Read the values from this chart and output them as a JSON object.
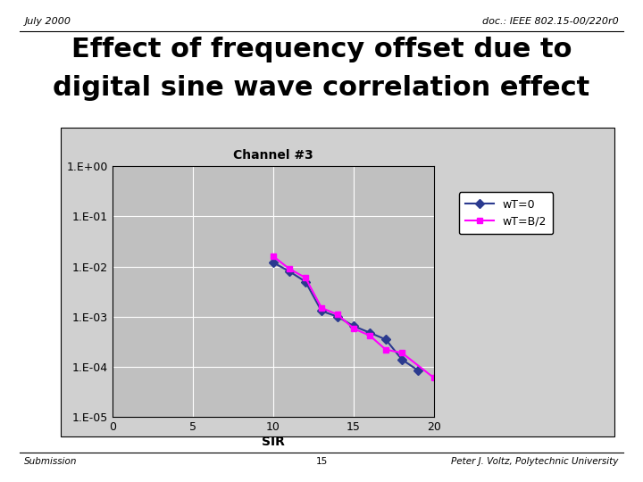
{
  "title_line1": "Effect of frequency offset due to",
  "title_line2": "digital sine wave correlation effect",
  "header_left": "July 2000",
  "header_right": "doc.: IEEE 802.15-00/220r0",
  "footer_left": "Submission",
  "footer_center": "15",
  "footer_right": "Peter J. Voltz, Polytechnic University",
  "chart_title": "Channel #3",
  "xlabel": "SIR",
  "xlim": [
    0,
    20
  ],
  "xticks": [
    0,
    5,
    10,
    15,
    20
  ],
  "ytick_labels": [
    "1.E-05",
    "1.E-04",
    "1.E-03",
    "1.E-02",
    "1.E-01",
    "1.E+00"
  ],
  "series": [
    {
      "label": "wT=0",
      "color": "#2b3a8f",
      "marker": "D",
      "markersize": 5,
      "linewidth": 1.5,
      "x": [
        10,
        11,
        12,
        13,
        14,
        15,
        16,
        17,
        18,
        19
      ],
      "y": [
        0.012,
        0.008,
        0.005,
        0.0013,
        0.001,
        0.00065,
        0.00048,
        0.00035,
        0.00014,
        8.5e-05
      ]
    },
    {
      "label": "wT=B/2",
      "color": "#ff00ff",
      "marker": "s",
      "markersize": 5,
      "linewidth": 1.5,
      "x": [
        10,
        11,
        12,
        13,
        14,
        15,
        16,
        17,
        18,
        20
      ],
      "y": [
        0.016,
        0.009,
        0.006,
        0.0015,
        0.0011,
        0.00058,
        0.00042,
        0.00022,
        0.00019,
        6e-05
      ]
    }
  ],
  "plot_bg_color": "#c0c0c0",
  "fig_bg_color": "#ffffff",
  "grid_color": "#ffffff",
  "legend_box_color": "#ffffff",
  "outer_box_color": "#d0d0d0"
}
